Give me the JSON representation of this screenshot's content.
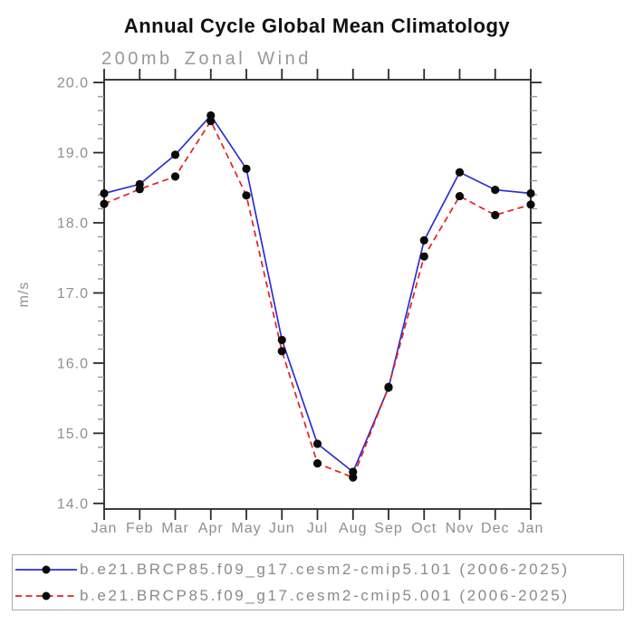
{
  "header": {
    "title": "Annual Cycle Global Mean Climatology",
    "subtitle": "200mb Zonal Wind"
  },
  "axes": {
    "ylabel": "m/s",
    "y_tick_labels": [
      "20.0",
      "19.0",
      "18.0",
      "17.0",
      "16.0",
      "15.0",
      "14.0"
    ],
    "x_tick_labels": [
      "Jan",
      "Feb",
      "Mar",
      "Apr",
      "May",
      "Jun",
      "Jul",
      "Aug",
      "Sep",
      "Oct",
      "Nov",
      "Dec",
      "Jan"
    ]
  },
  "legend": {
    "entries": [
      {
        "label": "b.e21.BRCP85.f09_g17.cesm2-cmip5.101 (2006-2025)",
        "line_color": "#2d2dd8",
        "line_style": "solid",
        "marker": "filled-circle",
        "marker_color": "#0a0a0a"
      },
      {
        "label": "b.e21.BRCP85.f09_g17.cesm2-cmip5.001 (2006-2025)",
        "line_color": "#e62020",
        "line_style": "dashed",
        "marker": "filled-circle",
        "marker_color": "#0a0a0a"
      }
    ]
  },
  "chart_data": {
    "type": "line",
    "title": "Annual Cycle Global Mean Climatology",
    "subtitle": "200mb Zonal Wind",
    "xlabel": "",
    "ylabel": "m/s",
    "categories": [
      "Jan",
      "Feb",
      "Mar",
      "Apr",
      "May",
      "Jun",
      "Jul",
      "Aug",
      "Sep",
      "Oct",
      "Nov",
      "Dec",
      "Jan"
    ],
    "ylim": [
      13.92,
      20.04
    ],
    "y_major_ticks": [
      14.0,
      15.0,
      16.0,
      17.0,
      18.0,
      19.0,
      20.0
    ],
    "y_minor_step": 0.2,
    "grid": false,
    "legend_position": "bottom",
    "series": [
      {
        "name": "b.e21.BRCP85.f09_g17.cesm2-cmip5.101 (2006-2025)",
        "color": "#2d2dd8",
        "style": "solid",
        "marker": "circle",
        "values": [
          18.42,
          18.55,
          18.97,
          19.53,
          18.77,
          16.33,
          14.85,
          14.45,
          15.65,
          17.75,
          18.72,
          18.47,
          18.42
        ]
      },
      {
        "name": "b.e21.BRCP85.f09_g17.cesm2-cmip5.001 (2006-2025)",
        "color": "#e62020",
        "style": "dashed",
        "marker": "circle",
        "values": [
          18.27,
          18.48,
          18.66,
          19.45,
          18.39,
          16.17,
          14.57,
          14.37,
          15.66,
          17.52,
          18.38,
          18.11,
          18.26
        ]
      }
    ]
  }
}
